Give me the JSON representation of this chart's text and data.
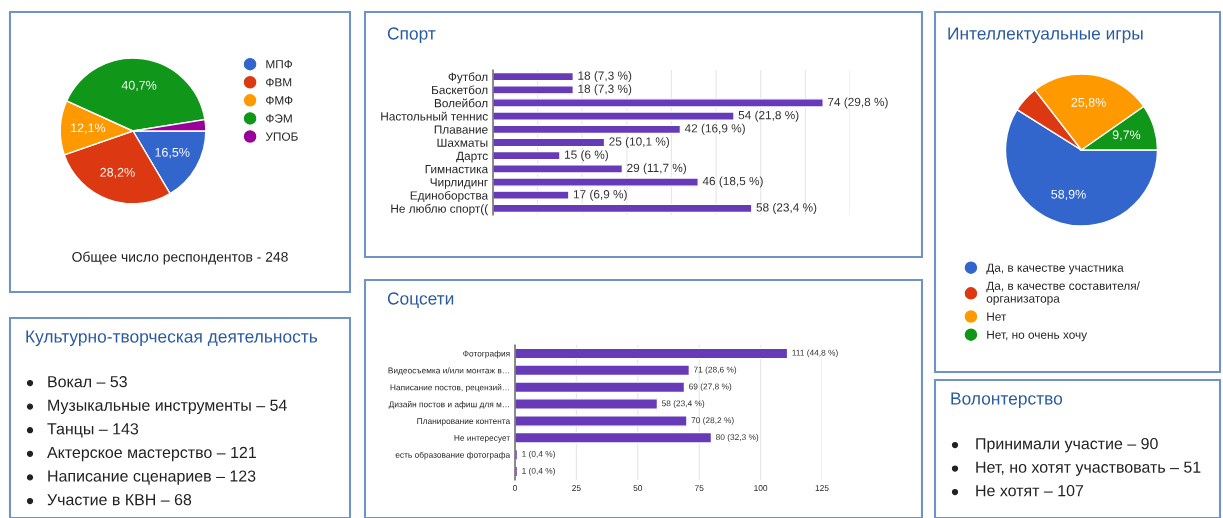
{
  "chart_data": [
    {
      "type": "pie",
      "categories": [
        "МПФ",
        "ФВМ",
        "ФМФ",
        "ФЭМ",
        "УПОБ"
      ],
      "values": [
        16.5,
        28.2,
        12.1,
        40.7,
        2.5
      ],
      "colors": [
        "#3366cc",
        "#dc3912",
        "#ff9900",
        "#109618",
        "#990099"
      ],
      "value_labels": [
        "16,5%",
        "28,2%",
        "12,1%",
        "40,7%",
        null
      ],
      "legend": "right",
      "annotations": [
        "Общее число респондентов - 248"
      ]
    },
    {
      "type": "bar",
      "title": "Спорт",
      "orientation": "horizontal",
      "categories": [
        "Футбол",
        "Баскетбол",
        "Волейбол",
        "Настольный теннис",
        "Плавание",
        "Шахматы",
        "Дартс",
        "Гимнастика",
        "Чирлидинг",
        "Единоборства",
        "Не люблю спорт(("
      ],
      "values": [
        18,
        18,
        74,
        54,
        42,
        25,
        15,
        29,
        46,
        17,
        58
      ],
      "color": "#673ab7",
      "value_labels": [
        "18 (7,3 %)",
        "18 (7,3 %)",
        "74 (29,8 %)",
        "54 (21,8 %)",
        "42 (16,9 %)",
        "25 (10,1 %)",
        "15 (6 %)",
        "29 (11,7 %)",
        "46 (18,5 %)",
        "17 (6,9 %)",
        "58 (23,4 %)"
      ],
      "xlim": [
        0,
        80
      ],
      "xticks": [
        {
          "value": 0,
          "label": null
        },
        {
          "value": 10,
          "label": null
        },
        {
          "value": 20,
          "label": null
        },
        {
          "value": 30,
          "label": null
        },
        {
          "value": 40,
          "label": null
        },
        {
          "value": 50,
          "label": null
        },
        {
          "value": 60,
          "label": null
        },
        {
          "value": 70,
          "label": null
        },
        {
          "value": 80,
          "label": null
        }
      ],
      "tick_labels": "y",
      "grid": "x"
    },
    {
      "type": "pie",
      "title": "Интеллектуальные игры",
      "categories": [
        "Да, в качестве участника",
        "Да, в качестве составителя/\nорганизатора",
        "Нет",
        "Нет, но очень хочу"
      ],
      "values": [
        58.9,
        5.6,
        25.8,
        9.7
      ],
      "colors": [
        "#3366cc",
        "#dc3912",
        "#ff9900",
        "#109618"
      ],
      "value_labels": [
        "58,9%",
        null,
        "25,8%",
        "9,7%"
      ],
      "legend": "bottom"
    },
    {
      "type": "other",
      "title": "Культурно-творческая деятельность",
      "annotations": [
        "Вокал – 53",
        "Музыкальные инструменты – 54",
        "Танцы – 143",
        "Актерское мастерство – 121",
        "Написание сценариев – 123",
        "Участие в КВН – 68"
      ]
    },
    {
      "type": "bar",
      "title": "Соцсети",
      "orientation": "horizontal",
      "categories": [
        "Фотография",
        "Видеосъемка и/или монтаж в…",
        "Написание постов, рецензий…",
        "Дизайн постов и афиш для м…",
        "Планирование контента",
        "Не интересует",
        "есть образование фотографа",
        null
      ],
      "values": [
        111,
        71,
        69,
        58,
        70,
        80,
        1,
        1
      ],
      "color": "#673ab7",
      "value_labels": [
        "111 (44,8 %)",
        "71 (28,6 %)",
        "69 (27,8 %)",
        "58 (23,4 %)",
        "70 (28,2 %)",
        "80 (32,3 %)",
        "1 (0,4 %)",
        "1 (0,4 %)"
      ],
      "xlim": [
        0,
        125
      ],
      "xticks": [
        0,
        25,
        50,
        75,
        100,
        125
      ],
      "grid": "x"
    },
    {
      "type": "other",
      "title": "Волонтерство",
      "annotations": [
        "Принимали участие – 90",
        "Нет, но хотят участвовать – 51",
        "Не хотят – 107"
      ]
    }
  ]
}
